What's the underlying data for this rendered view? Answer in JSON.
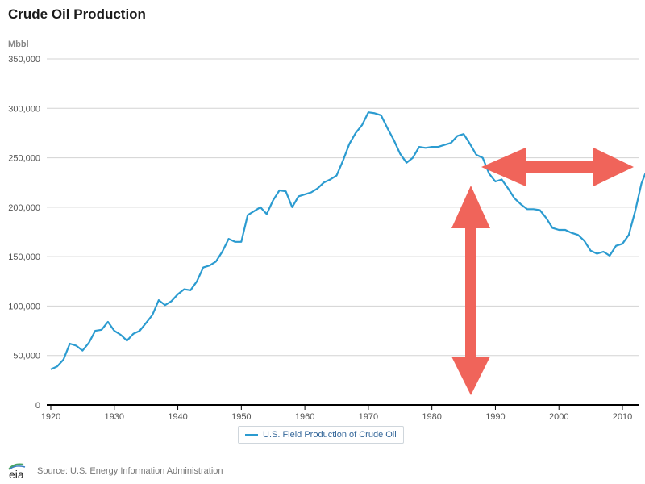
{
  "chart_data": {
    "type": "line",
    "title": "Crude Oil Production",
    "ylabel": "Mbbl",
    "xlim": [
      1920,
      2014
    ],
    "ylim": [
      0,
      350000
    ],
    "x_ticks": [
      1920,
      1930,
      1940,
      1950,
      1960,
      1970,
      1980,
      1990,
      2000,
      2010
    ],
    "y_ticks": [
      0,
      50000,
      100000,
      150000,
      200000,
      250000,
      300000,
      350000
    ],
    "y_tick_labels": [
      "0",
      "50,000",
      "100,000",
      "150,000",
      "200,000",
      "250,000",
      "300,000",
      "350,000"
    ],
    "grid": "horizontal",
    "legend_placement": "bottom-center",
    "series": [
      {
        "name": "U.S. Field Production of Crude Oil",
        "color": "#2b9bd0",
        "x": [
          1920,
          1921,
          1922,
          1923,
          1924,
          1925,
          1926,
          1927,
          1928,
          1929,
          1930,
          1931,
          1932,
          1933,
          1934,
          1935,
          1936,
          1937,
          1938,
          1939,
          1940,
          1941,
          1942,
          1943,
          1944,
          1945,
          1946,
          1947,
          1948,
          1949,
          1950,
          1951,
          1952,
          1953,
          1954,
          1955,
          1956,
          1957,
          1958,
          1959,
          1960,
          1961,
          1962,
          1963,
          1964,
          1965,
          1966,
          1967,
          1968,
          1969,
          1970,
          1971,
          1972,
          1973,
          1974,
          1975,
          1976,
          1977,
          1978,
          1979,
          1980,
          1981,
          1982,
          1983,
          1984,
          1985,
          1986,
          1987,
          1988,
          1989,
          1990,
          1991,
          1992,
          1993,
          1994,
          1995,
          1996,
          1997,
          1998,
          1999,
          2000,
          2001,
          2002,
          2003,
          2004,
          2005,
          2006,
          2007,
          2008,
          2009,
          2010,
          2011,
          2012,
          2013,
          2013.6
        ],
        "values": [
          36000,
          39000,
          46000,
          62000,
          60000,
          55000,
          63000,
          75000,
          76000,
          84000,
          75000,
          71000,
          65000,
          72000,
          75000,
          83000,
          91000,
          106000,
          101000,
          105000,
          112000,
          117000,
          116000,
          125000,
          139000,
          141000,
          145000,
          155000,
          168000,
          165000,
          165000,
          192000,
          196000,
          200000,
          193000,
          207000,
          217000,
          216000,
          200000,
          211000,
          213000,
          215000,
          219000,
          225000,
          228000,
          232000,
          247000,
          264000,
          275000,
          283000,
          296000,
          295000,
          293000,
          280000,
          268000,
          254000,
          245000,
          250000,
          261000,
          260000,
          261000,
          261000,
          263000,
          265000,
          272000,
          274000,
          264000,
          253000,
          250000,
          234000,
          226000,
          228000,
          219000,
          209000,
          203000,
          198000,
          198000,
          197000,
          189000,
          179000,
          177000,
          177000,
          174000,
          172000,
          166000,
          156000,
          153000,
          155000,
          151000,
          161000,
          163000,
          172000,
          196000,
          224000,
          234000
        ]
      }
    ]
  },
  "footer": {
    "source": "Source: U.S. Energy Information Administration",
    "logo_text": "eia"
  }
}
